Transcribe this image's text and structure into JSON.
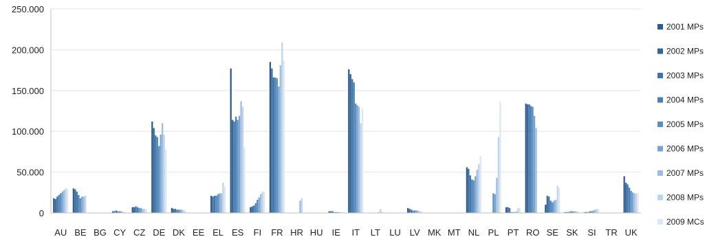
{
  "chart_data": {
    "type": "bar",
    "ylim": [
      0,
      250000
    ],
    "yticks": [
      "0",
      "50.000",
      "100.000",
      "150.000",
      "200.000",
      "250.000"
    ],
    "yticks_values": [
      0,
      50000,
      100000,
      150000,
      200000,
      250000
    ],
    "grid": true,
    "legend_position": "right",
    "categories": [
      "AU",
      "BE",
      "BG",
      "CY",
      "CZ",
      "DE",
      "DK",
      "EE",
      "EL",
      "ES",
      "FI",
      "FR",
      "HR",
      "HU",
      "IE",
      "IT",
      "LT",
      "LU",
      "LV",
      "MK",
      "MT",
      "NL",
      "PL",
      "PT",
      "RO",
      "SE",
      "SK",
      "SI",
      "TR",
      "UK"
    ],
    "series": [
      {
        "name": "2001 MPs",
        "color": "#2f5a8a",
        "values": [
          18000,
          30000,
          0,
          2000,
          7000,
          112000,
          6000,
          0,
          21000,
          177000,
          7000,
          185000,
          0,
          0,
          2000,
          176000,
          0,
          0,
          6000,
          0,
          0,
          56000,
          0,
          7000,
          134000,
          10000,
          1000,
          1000,
          0,
          45000
        ]
      },
      {
        "name": "2002 MPs",
        "color": "#37679a",
        "values": [
          17000,
          29000,
          0,
          2000,
          7000,
          104000,
          5000,
          0,
          20000,
          114000,
          8000,
          177000,
          0,
          0,
          2000,
          170000,
          0,
          0,
          5000,
          0,
          0,
          54000,
          0,
          7000,
          133000,
          21000,
          1000,
          1000,
          0,
          37000
        ]
      },
      {
        "name": "2003 MPs",
        "color": "#4074a8",
        "values": [
          20000,
          26000,
          0,
          3000,
          8000,
          95000,
          5000,
          0,
          21000,
          112000,
          9000,
          166000,
          0,
          0,
          2000,
          164000,
          0,
          0,
          4000,
          0,
          0,
          46000,
          0,
          6000,
          133000,
          20000,
          1000,
          1000,
          0,
          35000
        ]
      },
      {
        "name": "2004 MPs",
        "color": "#4b80b4",
        "values": [
          22000,
          22000,
          0,
          2000,
          7000,
          93000,
          4000,
          0,
          21000,
          118000,
          12000,
          166000,
          0,
          0,
          1000,
          160000,
          0,
          0,
          3000,
          0,
          0,
          41000,
          0,
          1000,
          131000,
          15000,
          2000,
          2000,
          0,
          31000
        ]
      },
      {
        "name": "2005 MPs",
        "color": "#5a8dc0",
        "values": [
          24000,
          18000,
          0,
          2000,
          6000,
          82000,
          4000,
          0,
          23000,
          114000,
          16000,
          165000,
          0,
          0,
          1000,
          134000,
          0,
          0,
          3000,
          0,
          0,
          40000,
          24000,
          1000,
          130000,
          13000,
          2000,
          2000,
          0,
          27000
        ]
      },
      {
        "name": "2006 MPs",
        "color": "#7aa3cf",
        "values": [
          26000,
          20000,
          0,
          2000,
          6000,
          96000,
          4000,
          0,
          24000,
          119000,
          19000,
          155000,
          0,
          0,
          1000,
          132000,
          0,
          0,
          3000,
          0,
          0,
          45000,
          23000,
          1000,
          119000,
          15000,
          2000,
          3000,
          0,
          25000
        ]
      },
      {
        "name": "2007 MPs",
        "color": "#9dbde0",
        "values": [
          28000,
          20000,
          0,
          1000,
          5000,
          110000,
          4000,
          0,
          24000,
          137000,
          23000,
          181000,
          15000,
          0,
          1000,
          130000,
          1000,
          0,
          3000,
          0,
          0,
          53000,
          43000,
          2000,
          104000,
          16000,
          2000,
          4000,
          0,
          24000
        ]
      },
      {
        "name": "2008 MPs",
        "color": "#bfd3ea",
        "values": [
          30000,
          21000,
          0,
          1000,
          5000,
          96000,
          3000,
          0,
          37000,
          130000,
          26000,
          209000,
          18000,
          0,
          1000,
          110000,
          5000,
          0,
          2000,
          0,
          0,
          60000,
          93000,
          6000,
          0,
          33000,
          2000,
          5000,
          0,
          24000
        ]
      },
      {
        "name": "2009 MCs",
        "color": "#dce7f3",
        "values": [
          29000,
          0,
          0,
          0,
          5000,
          78000,
          3000,
          0,
          32000,
          80000,
          26000,
          187000,
          0,
          0,
          1000,
          128000,
          2000,
          0,
          2000,
          0,
          0,
          70000,
          136000,
          6000,
          0,
          31000,
          1000,
          4000,
          0,
          24000
        ]
      }
    ]
  }
}
